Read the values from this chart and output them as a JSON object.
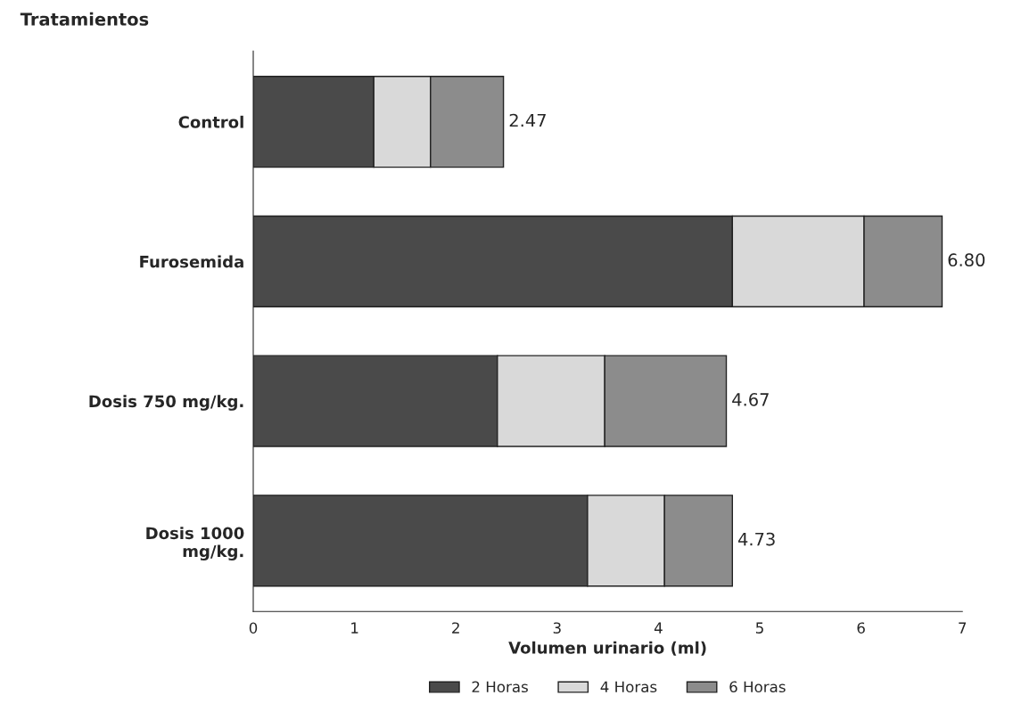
{
  "chart_data": {
    "type": "bar",
    "orientation": "horizontal",
    "stacked": true,
    "ylabel": "Tratamientos",
    "xlabel": "Volumen urinario (ml)",
    "categories": [
      "Control",
      "Furosemida",
      "Dosis 750 mg/kg.",
      "Dosis 1000\nmg/kg."
    ],
    "series": [
      {
        "name": "2 Horas",
        "color": "#4a4a4a",
        "values": [
          1.19,
          4.73,
          2.41,
          3.3
        ]
      },
      {
        "name": "4 Horas",
        "color": "#d9d9d9",
        "values": [
          0.56,
          1.3,
          1.06,
          0.76
        ]
      },
      {
        "name": "6 Horas",
        "color": "#8c8c8c",
        "values": [
          0.72,
          0.77,
          1.2,
          0.67
        ]
      }
    ],
    "totals": [
      "2.47",
      "6.80",
      "4.67",
      "4.73"
    ],
    "xlim": [
      0,
      7
    ],
    "xticks": [
      0,
      1,
      2,
      3,
      4,
      5,
      6,
      7
    ],
    "grid": false,
    "legend": "bottom"
  }
}
